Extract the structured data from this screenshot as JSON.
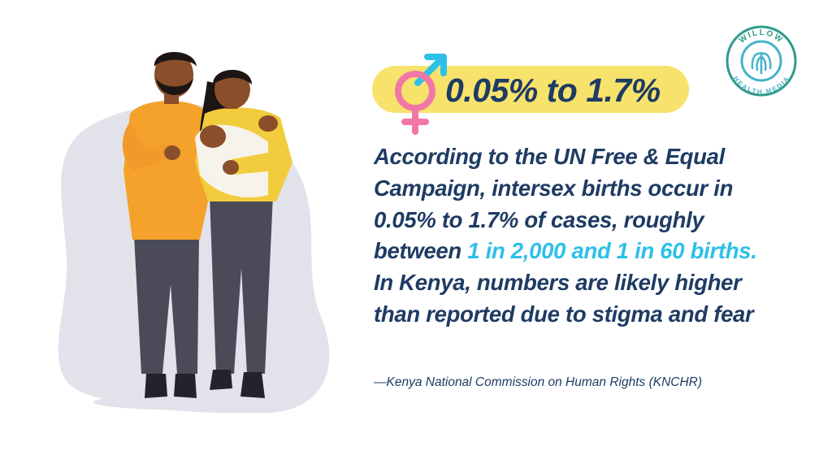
{
  "stat": {
    "headline": "0.05% to 1.7%"
  },
  "body": {
    "part1": "According to the UN Free & Equal Campaign, intersex births occur in 0.05% to 1.7% of cases, roughly between ",
    "highlight": "1 in 2,000 and 1 in 60 births.",
    "part2": " In Kenya, numbers are likely higher than reported due to stigma and fear"
  },
  "source": "—Kenya National Commission on Human Rights (KNCHR)",
  "logo": {
    "top_text": "WILLOW",
    "bottom_text": "HEALTH MEDIA"
  },
  "icons": {
    "gender": "intersex-symbol-icon",
    "logo_mark": "willow-tree-icon"
  },
  "colors": {
    "navy": "#1e3b63",
    "highlight_cyan": "#2cc0e8",
    "pill_yellow": "#f7e36c",
    "symbol_pink": "#f178a6",
    "symbol_blue": "#2cc0e8"
  }
}
